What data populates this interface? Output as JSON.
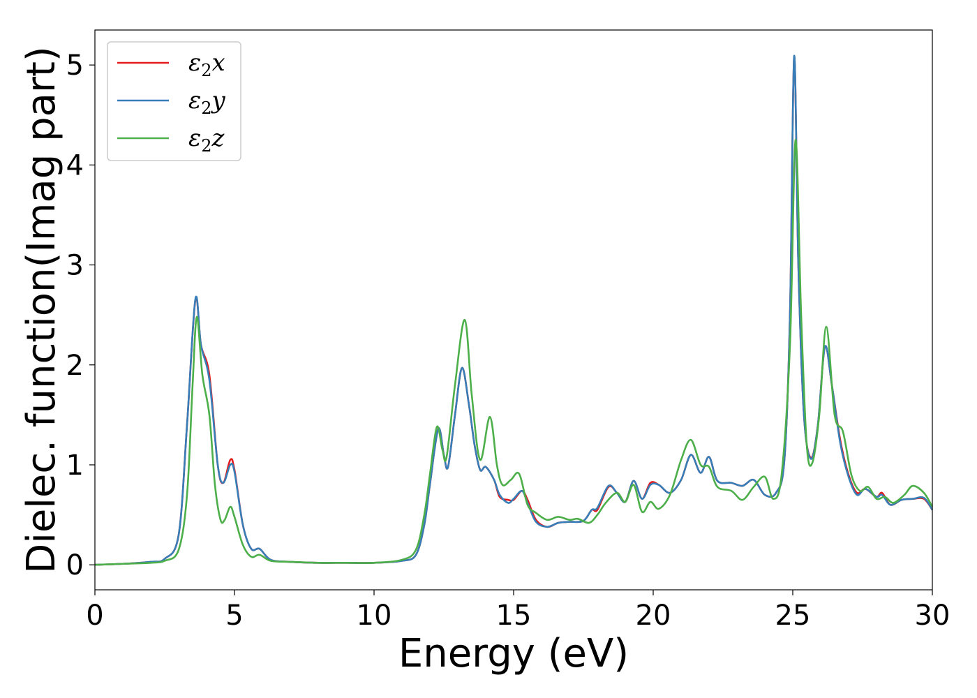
{
  "chart_data": {
    "type": "line",
    "title": "",
    "xlabel": "Energy (eV)",
    "ylabel": "Dielec. function(Imag part)",
    "xlim": [
      0,
      30
    ],
    "ylim": [
      -0.25,
      5.35
    ],
    "xticks": [
      0,
      5,
      10,
      15,
      20,
      25,
      30
    ],
    "yticks": [
      0,
      1,
      2,
      3,
      4,
      5
    ],
    "grid": false,
    "legend_position": "top-left",
    "series": [
      {
        "name": "ε₂x",
        "label_base": "ε",
        "label_sub": "2",
        "label_var": "x",
        "color": "#e41a1c",
        "points": [
          [
            0,
            0.0
          ],
          [
            1,
            0.01
          ],
          [
            2,
            0.03
          ],
          [
            2.5,
            0.06
          ],
          [
            3.0,
            0.3
          ],
          [
            3.3,
            1.4
          ],
          [
            3.6,
            2.65
          ],
          [
            3.8,
            2.2
          ],
          [
            4.1,
            1.9
          ],
          [
            4.4,
            1.0
          ],
          [
            4.6,
            0.82
          ],
          [
            4.85,
            1.05
          ],
          [
            5.0,
            0.95
          ],
          [
            5.3,
            0.4
          ],
          [
            5.6,
            0.16
          ],
          [
            5.9,
            0.16
          ],
          [
            6.3,
            0.05
          ],
          [
            7.0,
            0.03
          ],
          [
            8.0,
            0.02
          ],
          [
            9.0,
            0.02
          ],
          [
            10.0,
            0.02
          ],
          [
            11.0,
            0.04
          ],
          [
            11.5,
            0.1
          ],
          [
            11.8,
            0.4
          ],
          [
            12.0,
            0.8
          ],
          [
            12.3,
            1.36
          ],
          [
            12.5,
            1.1
          ],
          [
            12.65,
            0.98
          ],
          [
            12.9,
            1.5
          ],
          [
            13.15,
            1.97
          ],
          [
            13.4,
            1.6
          ],
          [
            13.6,
            1.2
          ],
          [
            13.8,
            0.95
          ],
          [
            14.0,
            0.98
          ],
          [
            14.3,
            0.85
          ],
          [
            14.5,
            0.68
          ],
          [
            14.8,
            0.65
          ],
          [
            15.0,
            0.65
          ],
          [
            15.3,
            0.74
          ],
          [
            15.5,
            0.65
          ],
          [
            15.8,
            0.45
          ],
          [
            16.2,
            0.38
          ],
          [
            16.6,
            0.42
          ],
          [
            17.0,
            0.43
          ],
          [
            17.5,
            0.44
          ],
          [
            17.8,
            0.55
          ],
          [
            18.0,
            0.55
          ],
          [
            18.4,
            0.78
          ],
          [
            18.7,
            0.72
          ],
          [
            19.0,
            0.63
          ],
          [
            19.3,
            0.84
          ],
          [
            19.6,
            0.66
          ],
          [
            19.9,
            0.82
          ],
          [
            20.2,
            0.8
          ],
          [
            20.6,
            0.72
          ],
          [
            21.0,
            0.85
          ],
          [
            21.35,
            1.1
          ],
          [
            21.7,
            0.92
          ],
          [
            22.0,
            1.08
          ],
          [
            22.3,
            0.84
          ],
          [
            22.8,
            0.82
          ],
          [
            23.2,
            0.79
          ],
          [
            23.6,
            0.85
          ],
          [
            24.0,
            0.7
          ],
          [
            24.4,
            0.72
          ],
          [
            24.7,
            1.05
          ],
          [
            24.9,
            2.5
          ],
          [
            25.05,
            5.08
          ],
          [
            25.2,
            3.0
          ],
          [
            25.4,
            1.5
          ],
          [
            25.65,
            1.07
          ],
          [
            25.9,
            1.4
          ],
          [
            26.15,
            2.18
          ],
          [
            26.4,
            1.8
          ],
          [
            26.7,
            1.25
          ],
          [
            27.0,
            0.9
          ],
          [
            27.3,
            0.72
          ],
          [
            27.6,
            0.76
          ],
          [
            28.0,
            0.68
          ],
          [
            28.2,
            0.72
          ],
          [
            28.5,
            0.6
          ],
          [
            28.9,
            0.65
          ],
          [
            29.3,
            0.66
          ],
          [
            29.7,
            0.66
          ],
          [
            30.0,
            0.55
          ]
        ]
      },
      {
        "name": "ε₂y",
        "label_base": "ε",
        "label_sub": "2",
        "label_var": "y",
        "color": "#377eb8",
        "points": [
          [
            0,
            0.0
          ],
          [
            1,
            0.01
          ],
          [
            2,
            0.03
          ],
          [
            2.5,
            0.06
          ],
          [
            3.0,
            0.3
          ],
          [
            3.3,
            1.4
          ],
          [
            3.6,
            2.66
          ],
          [
            3.8,
            2.2
          ],
          [
            4.1,
            1.85
          ],
          [
            4.4,
            1.0
          ],
          [
            4.6,
            0.82
          ],
          [
            4.85,
            1.0
          ],
          [
            5.0,
            0.93
          ],
          [
            5.3,
            0.4
          ],
          [
            5.6,
            0.16
          ],
          [
            5.9,
            0.16
          ],
          [
            6.3,
            0.05
          ],
          [
            7.0,
            0.03
          ],
          [
            8.0,
            0.02
          ],
          [
            9.0,
            0.02
          ],
          [
            10.0,
            0.02
          ],
          [
            11.0,
            0.04
          ],
          [
            11.5,
            0.1
          ],
          [
            11.8,
            0.4
          ],
          [
            12.0,
            0.8
          ],
          [
            12.3,
            1.36
          ],
          [
            12.5,
            1.1
          ],
          [
            12.65,
            0.98
          ],
          [
            12.9,
            1.5
          ],
          [
            13.15,
            1.97
          ],
          [
            13.4,
            1.6
          ],
          [
            13.6,
            1.2
          ],
          [
            13.8,
            0.95
          ],
          [
            14.0,
            0.98
          ],
          [
            14.3,
            0.85
          ],
          [
            14.5,
            0.7
          ],
          [
            14.8,
            0.62
          ],
          [
            15.0,
            0.66
          ],
          [
            15.3,
            0.74
          ],
          [
            15.5,
            0.62
          ],
          [
            15.8,
            0.43
          ],
          [
            16.2,
            0.38
          ],
          [
            16.6,
            0.42
          ],
          [
            17.0,
            0.43
          ],
          [
            17.5,
            0.44
          ],
          [
            17.8,
            0.55
          ],
          [
            18.0,
            0.57
          ],
          [
            18.4,
            0.79
          ],
          [
            18.7,
            0.72
          ],
          [
            19.0,
            0.63
          ],
          [
            19.3,
            0.84
          ],
          [
            19.6,
            0.66
          ],
          [
            19.9,
            0.8
          ],
          [
            20.2,
            0.8
          ],
          [
            20.6,
            0.72
          ],
          [
            21.0,
            0.85
          ],
          [
            21.35,
            1.1
          ],
          [
            21.7,
            0.92
          ],
          [
            22.0,
            1.08
          ],
          [
            22.3,
            0.84
          ],
          [
            22.8,
            0.82
          ],
          [
            23.2,
            0.79
          ],
          [
            23.6,
            0.85
          ],
          [
            24.0,
            0.7
          ],
          [
            24.4,
            0.72
          ],
          [
            24.7,
            1.05
          ],
          [
            24.9,
            2.5
          ],
          [
            25.05,
            5.09
          ],
          [
            25.2,
            3.0
          ],
          [
            25.4,
            1.5
          ],
          [
            25.65,
            1.06
          ],
          [
            25.9,
            1.4
          ],
          [
            26.15,
            2.18
          ],
          [
            26.4,
            1.8
          ],
          [
            26.7,
            1.22
          ],
          [
            27.0,
            0.88
          ],
          [
            27.3,
            0.7
          ],
          [
            27.6,
            0.76
          ],
          [
            28.0,
            0.68
          ],
          [
            28.2,
            0.7
          ],
          [
            28.5,
            0.6
          ],
          [
            28.9,
            0.65
          ],
          [
            29.3,
            0.66
          ],
          [
            29.7,
            0.67
          ],
          [
            30.0,
            0.55
          ]
        ]
      },
      {
        "name": "ε₂z",
        "label_base": "ε",
        "label_sub": "2",
        "label_var": "z",
        "color": "#4daf4a",
        "points": [
          [
            0,
            0.0
          ],
          [
            1,
            0.01
          ],
          [
            2,
            0.02
          ],
          [
            2.5,
            0.04
          ],
          [
            3.0,
            0.15
          ],
          [
            3.3,
            0.7
          ],
          [
            3.5,
            1.8
          ],
          [
            3.65,
            2.48
          ],
          [
            3.85,
            1.9
          ],
          [
            4.1,
            1.5
          ],
          [
            4.3,
            0.8
          ],
          [
            4.5,
            0.45
          ],
          [
            4.65,
            0.45
          ],
          [
            4.85,
            0.58
          ],
          [
            5.0,
            0.48
          ],
          [
            5.3,
            0.2
          ],
          [
            5.6,
            0.08
          ],
          [
            5.9,
            0.1
          ],
          [
            6.3,
            0.04
          ],
          [
            7.0,
            0.03
          ],
          [
            8.0,
            0.02
          ],
          [
            9.0,
            0.02
          ],
          [
            10.0,
            0.02
          ],
          [
            11.0,
            0.05
          ],
          [
            11.5,
            0.15
          ],
          [
            11.8,
            0.5
          ],
          [
            12.0,
            0.9
          ],
          [
            12.25,
            1.38
          ],
          [
            12.45,
            1.15
          ],
          [
            12.6,
            1.08
          ],
          [
            12.9,
            1.8
          ],
          [
            13.25,
            2.45
          ],
          [
            13.5,
            1.7
          ],
          [
            13.8,
            1.05
          ],
          [
            14.15,
            1.48
          ],
          [
            14.4,
            1.0
          ],
          [
            14.6,
            0.8
          ],
          [
            14.9,
            0.85
          ],
          [
            15.2,
            0.91
          ],
          [
            15.5,
            0.6
          ],
          [
            15.8,
            0.52
          ],
          [
            16.2,
            0.45
          ],
          [
            16.6,
            0.48
          ],
          [
            17.0,
            0.45
          ],
          [
            17.3,
            0.46
          ],
          [
            17.7,
            0.42
          ],
          [
            18.0,
            0.5
          ],
          [
            18.3,
            0.62
          ],
          [
            18.7,
            0.72
          ],
          [
            19.0,
            0.63
          ],
          [
            19.3,
            0.8
          ],
          [
            19.6,
            0.53
          ],
          [
            19.9,
            0.63
          ],
          [
            20.2,
            0.56
          ],
          [
            20.6,
            0.7
          ],
          [
            21.0,
            1.05
          ],
          [
            21.35,
            1.25
          ],
          [
            21.7,
            1.0
          ],
          [
            22.0,
            0.98
          ],
          [
            22.3,
            0.78
          ],
          [
            22.8,
            0.74
          ],
          [
            23.2,
            0.65
          ],
          [
            23.6,
            0.78
          ],
          [
            24.0,
            0.88
          ],
          [
            24.3,
            0.66
          ],
          [
            24.6,
            0.9
          ],
          [
            24.9,
            2.2
          ],
          [
            25.1,
            4.25
          ],
          [
            25.3,
            2.5
          ],
          [
            25.5,
            1.2
          ],
          [
            25.7,
            1.02
          ],
          [
            25.95,
            1.5
          ],
          [
            26.2,
            2.38
          ],
          [
            26.5,
            1.5
          ],
          [
            26.8,
            1.33
          ],
          [
            27.1,
            0.9
          ],
          [
            27.4,
            0.74
          ],
          [
            27.7,
            0.78
          ],
          [
            28.0,
            0.66
          ],
          [
            28.3,
            0.68
          ],
          [
            28.6,
            0.62
          ],
          [
            29.0,
            0.7
          ],
          [
            29.3,
            0.79
          ],
          [
            29.7,
            0.72
          ],
          [
            30.0,
            0.58
          ]
        ]
      }
    ]
  }
}
